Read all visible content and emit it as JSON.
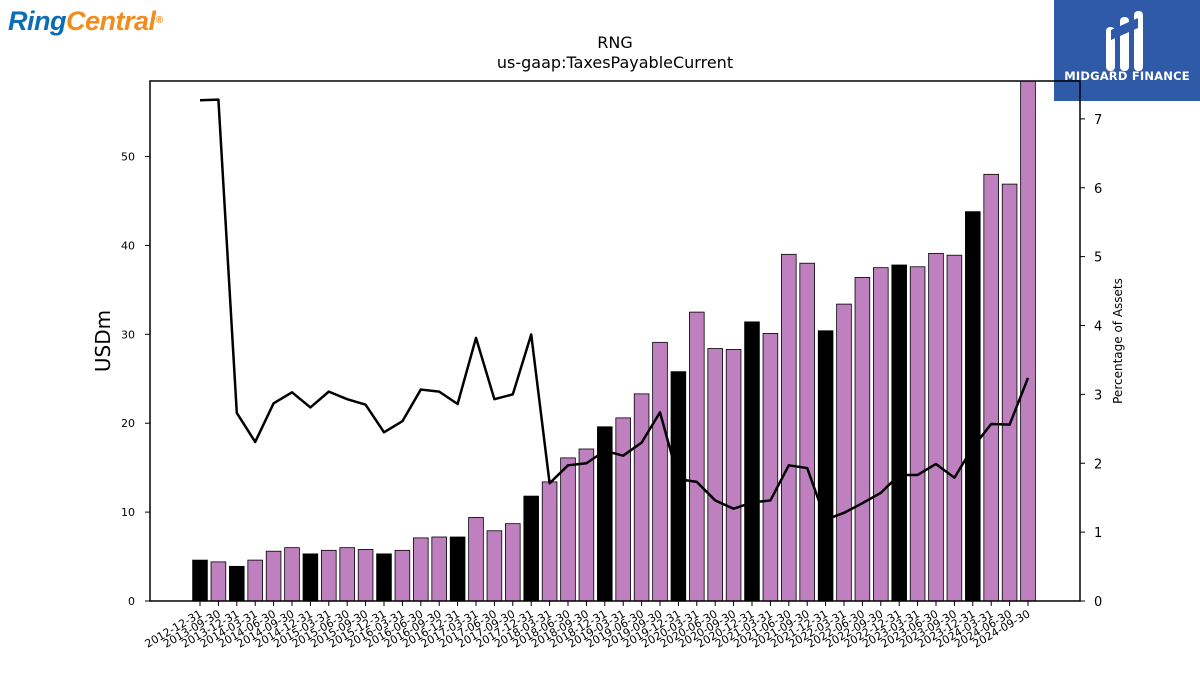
{
  "logos": {
    "left": {
      "part1": "Ring",
      "part2": "Central",
      "mark": "®"
    },
    "right": {
      "text": "MIDGARD FINANCE",
      "icon": "midgard-m-icon",
      "bg_color": "#2e5aa8"
    }
  },
  "chart_data": {
    "type": "bar",
    "title": "RNG",
    "subtitle": "us-gaap:TaxesPayableCurrent",
    "ylabel": "USDm",
    "y2label": "Percentage of Assets",
    "ylim": [
      0,
      58.5
    ],
    "y2lim": [
      0,
      7.55
    ],
    "yticks": [
      0,
      10,
      20,
      30,
      40,
      50
    ],
    "y2ticks": [
      0,
      1,
      2,
      3,
      4,
      5,
      6,
      7
    ],
    "categories": [
      "2012-12-31",
      "2013-09-30",
      "2013-12-31",
      "2014-03-31",
      "2014-06-30",
      "2014-09-30",
      "2014-12-31",
      "2015-03-31",
      "2015-06-30",
      "2015-09-30",
      "2015-12-31",
      "2016-03-31",
      "2016-06-30",
      "2016-09-30",
      "2016-12-31",
      "2017-03-31",
      "2017-06-30",
      "2017-09-30",
      "2017-12-31",
      "2018-03-31",
      "2018-06-30",
      "2018-09-30",
      "2018-12-31",
      "2019-03-31",
      "2019-06-30",
      "2019-09-30",
      "2019-12-31",
      "2020-03-31",
      "2020-06-30",
      "2020-09-30",
      "2020-12-31",
      "2021-03-31",
      "2021-06-30",
      "2021-09-30",
      "2021-12-31",
      "2022-03-31",
      "2022-06-30",
      "2022-09-30",
      "2022-12-31",
      "2023-03-31",
      "2023-06-30",
      "2023-09-30",
      "2023-12-31",
      "2024-03-31",
      "2024-06-30",
      "2024-09-30"
    ],
    "series": [
      {
        "type": "bar",
        "values": [
          4.6,
          4.4,
          3.9,
          4.6,
          5.6,
          6.0,
          5.3,
          5.7,
          6.0,
          5.8,
          5.3,
          5.7,
          7.1,
          7.2,
          7.2,
          9.4,
          7.9,
          8.7,
          11.8,
          13.4,
          16.1,
          17.1,
          19.6,
          20.6,
          23.3,
          29.1,
          25.8,
          32.5,
          28.4,
          28.3,
          31.4,
          30.1,
          39.0,
          38.0,
          30.4,
          33.4,
          36.4,
          37.5,
          37.8,
          37.6,
          39.1,
          38.9,
          43.8,
          48.0,
          46.9,
          58.8
        ],
        "annual": [
          true,
          false,
          true,
          false,
          false,
          false,
          true,
          false,
          false,
          false,
          true,
          false,
          false,
          false,
          true,
          false,
          false,
          false,
          true,
          false,
          false,
          false,
          true,
          false,
          false,
          false,
          true,
          false,
          false,
          false,
          true,
          false,
          false,
          false,
          true,
          false,
          false,
          false,
          true,
          false,
          false,
          false,
          true,
          false,
          false,
          false
        ],
        "color_annual": "#000000",
        "color_quarter": "#bf80bf"
      },
      {
        "type": "line",
        "axis": "right",
        "values": [
          7.27,
          7.28,
          2.73,
          2.31,
          2.87,
          3.03,
          2.81,
          3.04,
          2.93,
          2.85,
          2.45,
          2.61,
          3.07,
          3.04,
          2.86,
          3.82,
          2.93,
          3.0,
          3.87,
          1.71,
          1.97,
          2.0,
          2.18,
          2.11,
          2.3,
          2.74,
          1.77,
          1.73,
          1.46,
          1.34,
          1.43,
          1.46,
          1.97,
          1.93,
          1.18,
          1.28,
          1.42,
          1.57,
          1.83,
          1.83,
          1.99,
          1.79,
          2.23,
          2.57,
          2.56,
          3.24
        ],
        "color": "#000000"
      }
    ]
  }
}
